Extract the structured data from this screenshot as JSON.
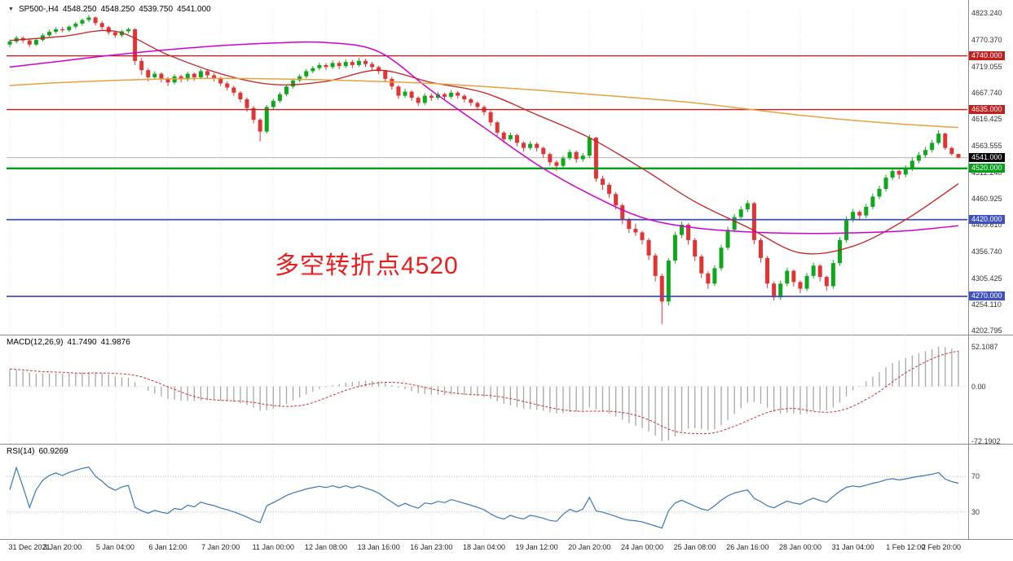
{
  "header": {
    "collapse_icon": "▼",
    "symbol_period": "SP500-,H4",
    "open": "4548.250",
    "high": "4548.250",
    "low": "4539.750",
    "close": "4541.000"
  },
  "annotation": {
    "text": "多空转折点4520",
    "color": "#e81f1f"
  },
  "price_axis": {
    "regular_labels": [
      "4823.240",
      "4770.370",
      "4719.055",
      "4667.740",
      "4616.425",
      "4563.555",
      "4512.240",
      "4460.925",
      "4409.610",
      "4356.740",
      "4305.425",
      "4254.110",
      "4202.795"
    ]
  },
  "macd_panel": {
    "label": "MACD(12,26,9)",
    "main_value": "41.7490",
    "signal_value": "41.9876",
    "axis_max": "52.1087",
    "axis_zero": "0.00",
    "axis_min": "-72.1902"
  },
  "rsi_panel": {
    "label": "RSI(14)",
    "value": "60.9269",
    "axis_labels": [
      "70",
      "30"
    ]
  },
  "chart_data": {
    "type": "candlestick",
    "symbol": "SP500-",
    "timeframe": "H4",
    "price_range": {
      "max": 4830,
      "min": 4200
    },
    "current_price": 4541.0,
    "current_price_label": "4541.000",
    "bull_color": "#0fa81c",
    "bear_color": "#e03535",
    "horizontal_levels": [
      {
        "value": 4740.0,
        "label": "4740.000",
        "color": "#c21f1f",
        "width": 1.4
      },
      {
        "value": 4635.0,
        "label": "4635.000",
        "color": "#c21f1f",
        "width": 1.4
      },
      {
        "value": 4520.0,
        "label": "4520.000",
        "color": "#00a018",
        "width": 2.4
      },
      {
        "value": 4420.0,
        "label": "4420.000",
        "color": "#3f51c1",
        "width": 1.8
      },
      {
        "value": 4270.0,
        "label": "4270.000",
        "color": "#3f51c1",
        "width": 1.8
      }
    ],
    "moving_averages": [
      {
        "name": "fast-ma-red",
        "color": "#c62020",
        "width": 1.3,
        "values": [
          4770,
          4778,
          4788,
          4742,
          4705,
          4684,
          4690,
          4712,
          4688,
          4668,
          4625,
          4580,
          4520,
          4455,
          4405,
          4355,
          4368,
          4420,
          4490
        ]
      },
      {
        "name": "mid-ma-magenta",
        "color": "#cf00cf",
        "width": 1.5,
        "values": [
          4718,
          4730,
          4742,
          4752,
          4760,
          4765,
          4766,
          4748,
          4672,
          4600,
          4528,
          4470,
          4424,
          4404,
          4396,
          4393,
          4394,
          4398,
          4408
        ]
      },
      {
        "name": "slow-ma-orange",
        "color": "#e6a23c",
        "width": 1.5,
        "values": [
          4682,
          4688,
          4692,
          4695,
          4696,
          4695,
          4693,
          4690,
          4686,
          4680,
          4673,
          4665,
          4657,
          4648,
          4636,
          4624,
          4614,
          4606,
          4600
        ]
      }
    ],
    "ma_values_every_bars": 8,
    "macd": {
      "params": [
        12,
        26,
        9
      ],
      "last_main": 41.749,
      "last_signal": 41.9876,
      "range": {
        "max": 52.1087,
        "min": -72.1902
      },
      "hist_color": "#a8a8a8",
      "signal_color": "#cf3333"
    },
    "rsi": {
      "period": 14,
      "last": 60.9269,
      "levels": [
        70,
        30
      ],
      "displayed_range": {
        "max": 95,
        "min": 5
      },
      "color": "#3a76b8"
    },
    "bars_per_label": 8,
    "time_labels": [
      "31 Dec 2021",
      "3 Jan 20:00",
      "5 Jan 04:00",
      "6 Jan 12:00",
      "7 Jan 20:00",
      "11 Jan 00:00",
      "12 Jan 08:00",
      "13 Jan 16:00",
      "16 Jan 23:00",
      "18 Jan 04:00",
      "19 Jan 12:00",
      "20 Jan 20:00",
      "24 Jan 00:00",
      "25 Jan 08:00",
      "26 Jan 16:00",
      "28 Jan 00:00",
      "31 Jan 04:00",
      "1 Feb 12:00",
      "2 Feb 20:00"
    ],
    "ohlc": [
      [
        4762,
        4772,
        4757,
        4768
      ],
      [
        4768,
        4779,
        4764,
        4775
      ],
      [
        4775,
        4778,
        4765,
        4770
      ],
      [
        4770,
        4773,
        4757,
        4762
      ],
      [
        4762,
        4774,
        4759,
        4771
      ],
      [
        4771,
        4784,
        4768,
        4780
      ],
      [
        4780,
        4791,
        4777,
        4787
      ],
      [
        4787,
        4796,
        4783,
        4792
      ],
      [
        4792,
        4797,
        4786,
        4790
      ],
      [
        4790,
        4800,
        4787,
        4797
      ],
      [
        4797,
        4807,
        4793,
        4803
      ],
      [
        4803,
        4813,
        4799,
        4810
      ],
      [
        4810,
        4820,
        4806,
        4815
      ],
      [
        4815,
        4817,
        4799,
        4804
      ],
      [
        4804,
        4808,
        4791,
        4796
      ],
      [
        4796,
        4799,
        4781,
        4786
      ],
      [
        4786,
        4789,
        4775,
        4780
      ],
      [
        4780,
        4791,
        4776,
        4788
      ],
      [
        4788,
        4795,
        4784,
        4792
      ],
      [
        4792,
        4794,
        4722,
        4730
      ],
      [
        4730,
        4736,
        4703,
        4712
      ],
      [
        4712,
        4716,
        4690,
        4698
      ],
      [
        4698,
        4710,
        4694,
        4705
      ],
      [
        4705,
        4708,
        4688,
        4695
      ],
      [
        4695,
        4699,
        4681,
        4688
      ],
      [
        4688,
        4704,
        4684,
        4700
      ],
      [
        4700,
        4703,
        4688,
        4694
      ],
      [
        4694,
        4709,
        4690,
        4705
      ],
      [
        4705,
        4708,
        4692,
        4698
      ],
      [
        4698,
        4714,
        4694,
        4710
      ],
      [
        4710,
        4713,
        4697,
        4702
      ],
      [
        4702,
        4706,
        4690,
        4696
      ],
      [
        4696,
        4699,
        4681,
        4686
      ],
      [
        4686,
        4690,
        4672,
        4678
      ],
      [
        4678,
        4682,
        4662,
        4668
      ],
      [
        4668,
        4671,
        4649,
        4655
      ],
      [
        4655,
        4659,
        4631,
        4638
      ],
      [
        4638,
        4642,
        4608,
        4615
      ],
      [
        4615,
        4618,
        4573,
        4592
      ],
      [
        4592,
        4644,
        4588,
        4640
      ],
      [
        4640,
        4656,
        4636,
        4652
      ],
      [
        4652,
        4669,
        4648,
        4665
      ],
      [
        4665,
        4684,
        4661,
        4680
      ],
      [
        4680,
        4696,
        4676,
        4692
      ],
      [
        4692,
        4704,
        4688,
        4700
      ],
      [
        4700,
        4714,
        4696,
        4710
      ],
      [
        4710,
        4720,
        4706,
        4716
      ],
      [
        4716,
        4727,
        4712,
        4722
      ],
      [
        4722,
        4726,
        4712,
        4718
      ],
      [
        4718,
        4731,
        4714,
        4726
      ],
      [
        4726,
        4730,
        4714,
        4720
      ],
      [
        4720,
        4733,
        4716,
        4728
      ],
      [
        4728,
        4732,
        4716,
        4722
      ],
      [
        4722,
        4736,
        4718,
        4730
      ],
      [
        4730,
        4734,
        4718,
        4724
      ],
      [
        4724,
        4728,
        4712,
        4718
      ],
      [
        4718,
        4721,
        4704,
        4710
      ],
      [
        4710,
        4713,
        4689,
        4695
      ],
      [
        4695,
        4699,
        4674,
        4680
      ],
      [
        4680,
        4683,
        4656,
        4662
      ],
      [
        4662,
        4676,
        4658,
        4670
      ],
      [
        4670,
        4673,
        4652,
        4658
      ],
      [
        4658,
        4661,
        4642,
        4648
      ],
      [
        4648,
        4667,
        4644,
        4662
      ],
      [
        4662,
        4666,
        4652,
        4658
      ],
      [
        4658,
        4670,
        4654,
        4665
      ],
      [
        4665,
        4668,
        4654,
        4660
      ],
      [
        4660,
        4673,
        4656,
        4668
      ],
      [
        4668,
        4671,
        4656,
        4662
      ],
      [
        4662,
        4665,
        4649,
        4655
      ],
      [
        4655,
        4658,
        4642,
        4648
      ],
      [
        4648,
        4651,
        4634,
        4640
      ],
      [
        4640,
        4643,
        4624,
        4630
      ],
      [
        4630,
        4633,
        4603,
        4610
      ],
      [
        4610,
        4613,
        4583,
        4590
      ],
      [
        4590,
        4593,
        4570,
        4577
      ],
      [
        4577,
        4590,
        4573,
        4585
      ],
      [
        4585,
        4588,
        4563,
        4570
      ],
      [
        4570,
        4573,
        4553,
        4560
      ],
      [
        4560,
        4573,
        4556,
        4568
      ],
      [
        4568,
        4571,
        4553,
        4560
      ],
      [
        4560,
        4563,
        4541,
        4548
      ],
      [
        4548,
        4551,
        4525,
        4532
      ],
      [
        4532,
        4536,
        4515,
        4525
      ],
      [
        4525,
        4545,
        4521,
        4540
      ],
      [
        4540,
        4557,
        4536,
        4552
      ],
      [
        4552,
        4555,
        4531,
        4538
      ],
      [
        4538,
        4550,
        4533,
        4545
      ],
      [
        4545,
        4586,
        4540,
        4580
      ],
      [
        4580,
        4582,
        4494,
        4500
      ],
      [
        4500,
        4506,
        4478,
        4488
      ],
      [
        4488,
        4492,
        4462,
        4470
      ],
      [
        4470,
        4474,
        4440,
        4448
      ],
      [
        4448,
        4452,
        4411,
        4420
      ],
      [
        4420,
        4424,
        4394,
        4402
      ],
      [
        4402,
        4412,
        4388,
        4395
      ],
      [
        4395,
        4398,
        4371,
        4380
      ],
      [
        4380,
        4384,
        4341,
        4350
      ],
      [
        4350,
        4354,
        4299,
        4310
      ],
      [
        4310,
        4315,
        4216,
        4260
      ],
      [
        4260,
        4345,
        4252,
        4340
      ],
      [
        4340,
        4396,
        4334,
        4390
      ],
      [
        4390,
        4416,
        4384,
        4410
      ],
      [
        4410,
        4413,
        4371,
        4380
      ],
      [
        4380,
        4384,
        4339,
        4348
      ],
      [
        4348,
        4352,
        4306,
        4315
      ],
      [
        4315,
        4319,
        4285,
        4295
      ],
      [
        4295,
        4331,
        4290,
        4325
      ],
      [
        4325,
        4371,
        4320,
        4365
      ],
      [
        4365,
        4406,
        4360,
        4400
      ],
      [
        4400,
        4431,
        4395,
        4425
      ],
      [
        4425,
        4446,
        4420,
        4440
      ],
      [
        4440,
        4458,
        4435,
        4452
      ],
      [
        4452,
        4455,
        4372,
        4380
      ],
      [
        4380,
        4384,
        4336,
        4345
      ],
      [
        4345,
        4349,
        4286,
        4295
      ],
      [
        4295,
        4299,
        4262,
        4268
      ],
      [
        4268,
        4301,
        4263,
        4295
      ],
      [
        4295,
        4326,
        4290,
        4320
      ],
      [
        4320,
        4323,
        4289,
        4298
      ],
      [
        4298,
        4301,
        4276,
        4285
      ],
      [
        4285,
        4316,
        4280,
        4310
      ],
      [
        4310,
        4336,
        4305,
        4330
      ],
      [
        4330,
        4333,
        4299,
        4308
      ],
      [
        4308,
        4311,
        4281,
        4290
      ],
      [
        4290,
        4341,
        4285,
        4335
      ],
      [
        4335,
        4386,
        4330,
        4380
      ],
      [
        4380,
        4426,
        4375,
        4420
      ],
      [
        4420,
        4441,
        4415,
        4435
      ],
      [
        4435,
        4438,
        4419,
        4428
      ],
      [
        4428,
        4451,
        4423,
        4445
      ],
      [
        4445,
        4471,
        4440,
        4465
      ],
      [
        4465,
        4486,
        4460,
        4480
      ],
      [
        4480,
        4508,
        4475,
        4502
      ],
      [
        4502,
        4521,
        4497,
        4515
      ],
      [
        4515,
        4518,
        4499,
        4508
      ],
      [
        4508,
        4526,
        4503,
        4520
      ],
      [
        4520,
        4541,
        4515,
        4535
      ],
      [
        4535,
        4552,
        4530,
        4546
      ],
      [
        4546,
        4562,
        4541,
        4556
      ],
      [
        4556,
        4576,
        4551,
        4570
      ],
      [
        4570,
        4595,
        4566,
        4588
      ],
      [
        4588,
        4590,
        4556,
        4560
      ],
      [
        4560,
        4563,
        4545,
        4548.25
      ],
      [
        4548.25,
        4548.25,
        4539.75,
        4541
      ]
    ]
  }
}
